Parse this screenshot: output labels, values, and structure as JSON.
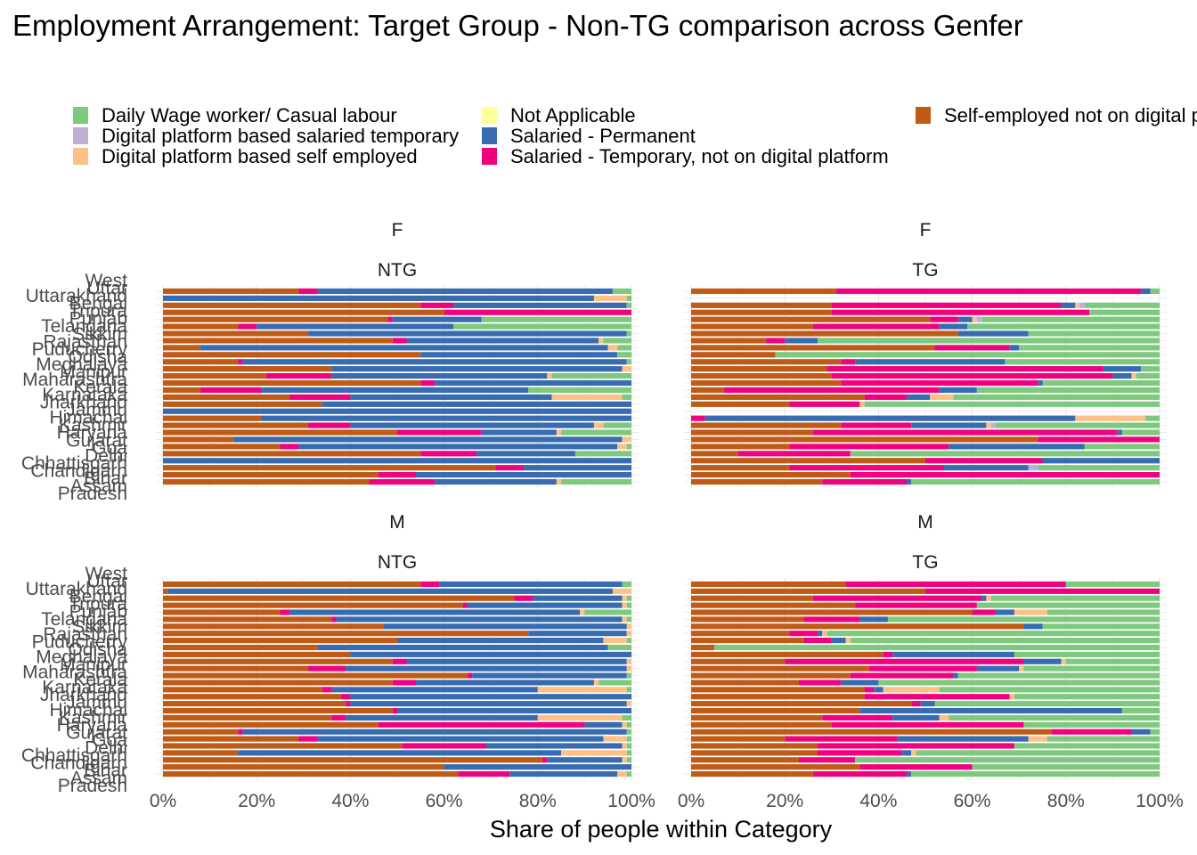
{
  "title": "Employment Arrangement: Target Group - Non-TG comparison across Genfer",
  "xlabel": "Share of people within Category",
  "colors": {
    "Daily Wage worker/ Casual labour": "#7FC97F",
    "Digital platform based salaried temporary": "#BEAED4",
    "Digital platform based self employed": "#FDC086",
    "Not Applicable": "#FFFF99",
    "Salaried - Permanent": "#386CB0",
    "Salaried - Temporary, not on digital platform": "#F0027F",
    "Self-employed not on digital platform": "#BF5B17"
  },
  "legend": {
    "col1": [
      "Daily Wage worker/ Casual labour",
      "Digital platform based salaried temporary",
      "Digital platform based self employed"
    ],
    "col2": [
      "Not Applicable",
      "Salaried - Permanent",
      "Salaried - Temporary, not on digital platform"
    ],
    "col3": [
      "Self-employed not on digital p"
    ]
  },
  "chart_data": {
    "type": "bar",
    "orientation": "horizontal",
    "stacked": true,
    "xlim": [
      0,
      1
    ],
    "x_ticks": [
      "0%",
      "20%",
      "40%",
      "60%",
      "80%",
      "100%"
    ],
    "y_tick_labels_visible": [
      "West",
      "Uttar",
      "Uttarakhand",
      "Bengal",
      "Tripura",
      "Punjab",
      "Telangana",
      "Sikkim",
      "Rajasthan",
      "Puducherry",
      "Odisha",
      "Meghalaya",
      "Manipur",
      "Maharashtra",
      "Kerala",
      "Karnataka",
      "Jharkhand",
      "Jammu",
      "Himachal",
      "Kashmir",
      "Haryana",
      "Gujarat",
      "Goa",
      "Delhi",
      "Chhattisgarh",
      "Chandigarh",
      "Bihar",
      "Assam",
      "Pradesh"
    ],
    "stack_order": [
      "Self-employed not on digital platform",
      "Salaried - Temporary, not on digital platform",
      "Salaried - Permanent",
      "Not Applicable",
      "Digital platform based self employed",
      "Digital platform based salaried temporary",
      "Daily Wage worker/ Casual labour"
    ],
    "panels": [
      {
        "gender": "F",
        "group": "NTG",
        "rows": [
          [
            0.29,
            0.04,
            0.63,
            0,
            0,
            0,
            0.04
          ],
          [
            0,
            0,
            0.92,
            0,
            0.07,
            0,
            0.01
          ],
          [
            0.55,
            0.07,
            0.37,
            0,
            0,
            0,
            0.01
          ],
          [
            0.6,
            0.4,
            0,
            0,
            0,
            0,
            0
          ],
          [
            0.48,
            0.01,
            0.19,
            0,
            0,
            0,
            0.32
          ],
          [
            0.16,
            0.04,
            0.42,
            0,
            0,
            0,
            0.38
          ],
          [
            0.31,
            0,
            0.68,
            0,
            0,
            0,
            0.01
          ],
          [
            0.49,
            0.03,
            0.41,
            0,
            0.01,
            0,
            0.06
          ],
          [
            0.08,
            0,
            0.87,
            0,
            0.02,
            0,
            0.03
          ],
          [
            0.55,
            0,
            0.42,
            0,
            0,
            0,
            0.03
          ],
          [
            0.16,
            0.01,
            0.82,
            0,
            0,
            0,
            0.01
          ],
          [
            0.36,
            0,
            0.62,
            0,
            0.02,
            0,
            0
          ],
          [
            0.22,
            0.14,
            0.46,
            0,
            0.01,
            0,
            0.17
          ],
          [
            0.55,
            0.03,
            0.42,
            0,
            0,
            0,
            0
          ],
          [
            0.08,
            0.13,
            0.57,
            0,
            0,
            0,
            0.22
          ],
          [
            0.27,
            0.13,
            0.43,
            0,
            0.15,
            0,
            0.02
          ],
          [
            0.34,
            0,
            0.66,
            0,
            0,
            0,
            0
          ],
          [
            0,
            0,
            1.0,
            0,
            0,
            0,
            0
          ],
          [
            0.21,
            0,
            0.79,
            0,
            0,
            0,
            0
          ],
          [
            0.31,
            0.09,
            0.52,
            0,
            0.02,
            0,
            0.06
          ],
          [
            0.5,
            0.18,
            0.16,
            0,
            0.01,
            0,
            0.15
          ],
          [
            0.15,
            0,
            0.83,
            0,
            0.02,
            0,
            0
          ],
          [
            0.25,
            0.04,
            0.68,
            0,
            0.02,
            0,
            0.01
          ],
          [
            0.55,
            0.12,
            0.21,
            0,
            0,
            0,
            0.12
          ],
          [
            0,
            0,
            1.0,
            0,
            0,
            0,
            0
          ],
          [
            0.71,
            0.06,
            0.23,
            0,
            0,
            0,
            0
          ],
          [
            0.46,
            0.08,
            0.46,
            0,
            0,
            0,
            0
          ],
          [
            0.44,
            0.14,
            0.26,
            0,
            0.01,
            0,
            0.15
          ]
        ]
      },
      {
        "gender": "F",
        "group": "TG",
        "rows": [
          [
            0.31,
            0.65,
            0.02,
            0,
            0,
            0,
            0.02
          ],
          [
            0,
            0,
            0,
            0,
            0,
            0,
            0
          ],
          [
            0.3,
            0.49,
            0.03,
            0,
            0.01,
            0.01,
            0.16
          ],
          [
            0.3,
            0.55,
            0,
            0,
            0,
            0,
            0.15
          ],
          [
            0.51,
            0.06,
            0.03,
            0,
            0.01,
            0.01,
            0.38
          ],
          [
            0.26,
            0.27,
            0.06,
            0,
            0,
            0,
            0.41
          ],
          [
            0.57,
            0,
            0.15,
            0,
            0,
            0,
            0.28
          ],
          [
            0.16,
            0.04,
            0.07,
            0,
            0,
            0,
            0.73
          ],
          [
            0.52,
            0.16,
            0.02,
            0,
            0,
            0,
            0.3
          ],
          [
            0.18,
            0,
            0,
            0,
            0,
            0,
            0.82
          ],
          [
            0.32,
            0.03,
            0.32,
            0,
            0,
            0,
            0.33
          ],
          [
            0.29,
            0.59,
            0.08,
            0,
            0,
            0,
            0.04
          ],
          [
            0.3,
            0.6,
            0.04,
            0,
            0.01,
            0,
            0.05
          ],
          [
            0.32,
            0.42,
            0.01,
            0,
            0,
            0,
            0.25
          ],
          [
            0.07,
            0.46,
            0.08,
            0,
            0,
            0,
            0.39
          ],
          [
            0.37,
            0.09,
            0.05,
            0,
            0.05,
            0,
            0.44
          ],
          [
            0.21,
            0.15,
            0,
            0,
            0.01,
            0,
            0.63
          ],
          [
            0,
            0,
            0,
            0,
            0,
            0,
            0
          ],
          [
            0,
            0.03,
            0.79,
            0,
            0.15,
            0,
            0.03
          ],
          [
            0.32,
            0.15,
            0.16,
            0,
            0.01,
            0.01,
            0.35
          ],
          [
            0.26,
            0.65,
            0.01,
            0,
            0,
            0,
            0.08
          ],
          [
            0.74,
            0.26,
            0,
            0,
            0,
            0,
            0
          ],
          [
            0.21,
            0.34,
            0.29,
            0,
            0,
            0,
            0.16
          ],
          [
            0.1,
            0.24,
            0,
            0,
            0,
            0,
            0.66
          ],
          [
            0.5,
            0.25,
            0.25,
            0,
            0,
            0,
            0
          ],
          [
            0.21,
            0.33,
            0.18,
            0,
            0,
            0.02,
            0.26
          ],
          [
            0.34,
            0.66,
            0,
            0,
            0,
            0,
            0
          ],
          [
            0.28,
            0.18,
            0.01,
            0,
            0,
            0,
            0.53
          ]
        ]
      },
      {
        "gender": "M",
        "group": "NTG",
        "rows": [
          [
            0.55,
            0.04,
            0.39,
            0,
            0,
            0,
            0.02
          ],
          [
            0.01,
            0,
            0.95,
            0,
            0.04,
            0,
            0
          ],
          [
            0.75,
            0.04,
            0.19,
            0,
            0.01,
            0,
            0.01
          ],
          [
            0.64,
            0.01,
            0.33,
            0,
            0.01,
            0,
            0.01
          ],
          [
            0.25,
            0.02,
            0.62,
            0,
            0.01,
            0,
            0.1
          ],
          [
            0.36,
            0.01,
            0.61,
            0,
            0.01,
            0,
            0.01
          ],
          [
            0.47,
            0,
            0.52,
            0,
            0.01,
            0,
            0
          ],
          [
            0.78,
            0,
            0.21,
            0,
            0.01,
            0,
            0
          ],
          [
            0.5,
            0,
            0.44,
            0,
            0.05,
            0,
            0.01
          ],
          [
            0.33,
            0,
            0.62,
            0,
            0,
            0,
            0.05
          ],
          [
            0.4,
            0,
            0.6,
            0,
            0,
            0,
            0
          ],
          [
            0.49,
            0.03,
            0.47,
            0,
            0.01,
            0,
            0
          ],
          [
            0.31,
            0.08,
            0.6,
            0,
            0.01,
            0,
            0
          ],
          [
            0.65,
            0.01,
            0.33,
            0,
            0,
            0,
            0.01
          ],
          [
            0.49,
            0.05,
            0.38,
            0,
            0.01,
            0,
            0.07
          ],
          [
            0.34,
            0.02,
            0.44,
            0,
            0.19,
            0,
            0.01
          ],
          [
            0.38,
            0.02,
            0.6,
            0,
            0,
            0,
            0
          ],
          [
            0.39,
            0.01,
            0.59,
            0,
            0.01,
            0,
            0
          ],
          [
            0.49,
            0.01,
            0.5,
            0,
            0,
            0,
            0
          ],
          [
            0.36,
            0.03,
            0.41,
            0,
            0.18,
            0,
            0.02
          ],
          [
            0.46,
            0.44,
            0.08,
            0,
            0.01,
            0,
            0.01
          ],
          [
            0.16,
            0.01,
            0.82,
            0,
            0,
            0,
            0.01
          ],
          [
            0.29,
            0.04,
            0.61,
            0,
            0.05,
            0,
            0.01
          ],
          [
            0.51,
            0.18,
            0.29,
            0,
            0.01,
            0,
            0.01
          ],
          [
            0.16,
            0,
            0.69,
            0,
            0.14,
            0,
            0.01
          ],
          [
            0.81,
            0.01,
            0.16,
            0,
            0.01,
            0,
            0.01
          ],
          [
            0.6,
            0,
            0.4,
            0,
            0,
            0,
            0
          ],
          [
            0.63,
            0.11,
            0.23,
            0,
            0.02,
            0,
            0.01
          ]
        ]
      },
      {
        "gender": "M",
        "group": "TG",
        "rows": [
          [
            0.33,
            0.47,
            0,
            0,
            0,
            0,
            0.2
          ],
          [
            0.5,
            0.5,
            0,
            0,
            0,
            0,
            0
          ],
          [
            0.26,
            0.36,
            0.01,
            0,
            0.01,
            0,
            0.36
          ],
          [
            0.35,
            0.26,
            0,
            0,
            0,
            0,
            0.39
          ],
          [
            0.6,
            0.05,
            0.04,
            0,
            0.07,
            0,
            0.24
          ],
          [
            0.24,
            0.12,
            0.06,
            0,
            0,
            0,
            0.58
          ],
          [
            0.71,
            0,
            0.04,
            0,
            0,
            0,
            0.25
          ],
          [
            0.21,
            0.06,
            0.01,
            0,
            0.01,
            0,
            0.71
          ],
          [
            0.24,
            0.06,
            0.03,
            0,
            0.01,
            0,
            0.66
          ],
          [
            0.05,
            0,
            0,
            0,
            0,
            0,
            0.95
          ],
          [
            0.41,
            0.02,
            0.26,
            0,
            0,
            0,
            0.31
          ],
          [
            0.2,
            0.51,
            0.08,
            0,
            0.01,
            0,
            0.2
          ],
          [
            0.38,
            0.23,
            0.09,
            0,
            0.01,
            0,
            0.29
          ],
          [
            0.34,
            0.22,
            0.01,
            0,
            0,
            0,
            0.43
          ],
          [
            0.23,
            0.09,
            0.08,
            0,
            0,
            0,
            0.6
          ],
          [
            0.37,
            0.02,
            0.02,
            0,
            0.12,
            0,
            0.47
          ],
          [
            0.37,
            0.31,
            0,
            0,
            0.01,
            0,
            0.31
          ],
          [
            0.47,
            0.02,
            0.03,
            0,
            0,
            0,
            0.48
          ],
          [
            0.36,
            0,
            0.56,
            0,
            0,
            0,
            0.08
          ],
          [
            0.28,
            0.15,
            0.1,
            0,
            0.02,
            0,
            0.45
          ],
          [
            0.3,
            0.41,
            0,
            0,
            0,
            0,
            0.29
          ],
          [
            0.77,
            0.17,
            0.04,
            0,
            0,
            0,
            0.02
          ],
          [
            0.2,
            0.24,
            0.28,
            0,
            0.04,
            0,
            0.24
          ],
          [
            0.27,
            0.42,
            0,
            0,
            0,
            0,
            0.31
          ],
          [
            0.27,
            0.18,
            0.02,
            0,
            0.01,
            0,
            0.52
          ],
          [
            0.23,
            0.12,
            0,
            0,
            0,
            0,
            0.65
          ],
          [
            0.36,
            0.24,
            0,
            0,
            0,
            0,
            0.4
          ],
          [
            0.26,
            0.2,
            0.01,
            0,
            0,
            0,
            0.53
          ]
        ]
      }
    ]
  }
}
